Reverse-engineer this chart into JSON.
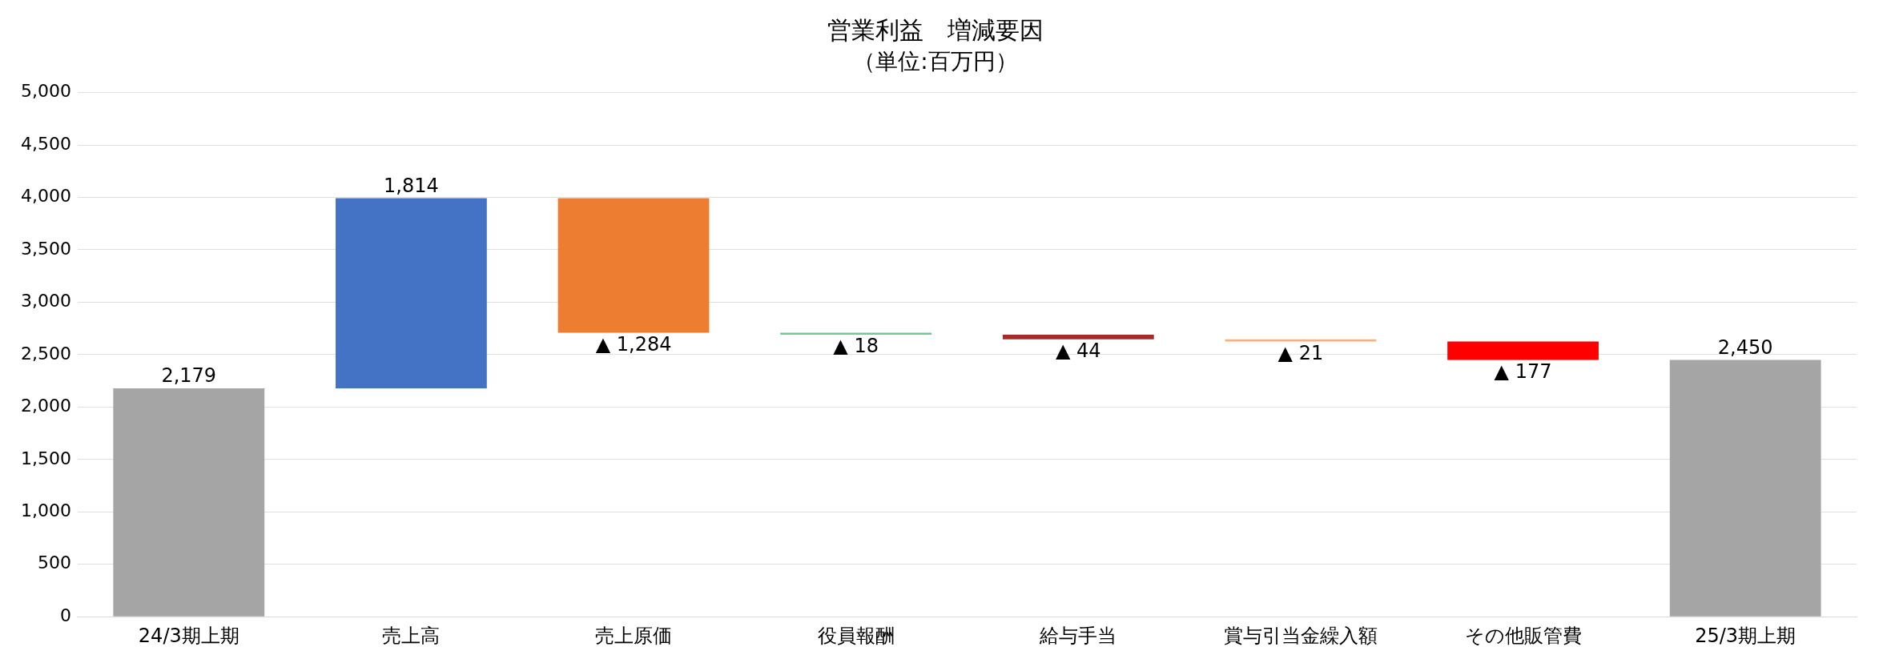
{
  "chart_data": {
    "type": "bar",
    "title": "営業利益　増減要因",
    "subtitle": "（単位:百万円）",
    "categories": [
      "24/3期上期",
      "売上高",
      "売上原価",
      "役員報酬",
      "給与手当",
      "賞与引当金繰入額",
      "その他販管費",
      "25/3期上期"
    ],
    "values": [
      2179,
      1814,
      -1284,
      -18,
      -44,
      -21,
      -177,
      2450
    ],
    "base": [
      0,
      2179,
      3993,
      2709,
      2691,
      2647,
      2626,
      0
    ],
    "colors": [
      "#a5a5a5",
      "#4472c4",
      "#ed7d31",
      "#70c898",
      "#a52a2a",
      "#f4b183",
      "#ff0000",
      "#a5a5a5"
    ],
    "value_labels": [
      "2,179",
      "1,814",
      "▲ 1,284",
      "▲ 18",
      "▲ 44",
      "▲ 21",
      "▲ 177",
      "2,450"
    ],
    "ylim": [
      0,
      5000
    ],
    "yticks": [
      0,
      500,
      {
        "value": 1000,
        "label": "1,000"
      },
      {
        "value": 1500,
        "label": "1,500"
      },
      {
        "value": 2000,
        "label": "2,000"
      },
      {
        "value": 2500,
        "label": "2,500"
      },
      {
        "value": 3000,
        "label": "3,000"
      },
      {
        "value": 3500,
        "label": "3,500"
      },
      {
        "value": 4000,
        "label": "4,000"
      },
      {
        "value": 4500,
        "label": "4,500"
      },
      {
        "value": 5000,
        "label": "5,000"
      }
    ],
    "grid": "y",
    "legend": false
  }
}
